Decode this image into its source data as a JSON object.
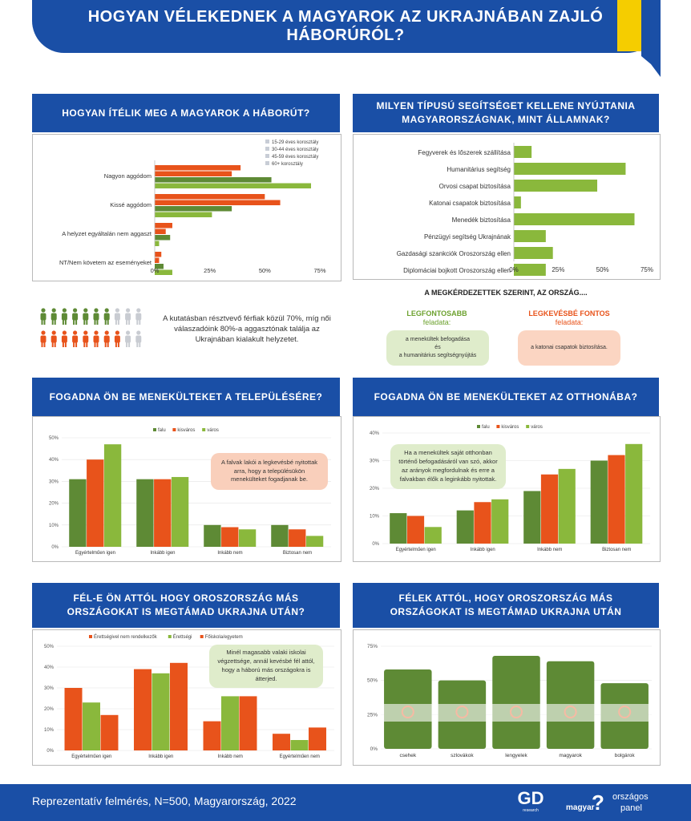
{
  "header": {
    "title": "HOGYAN VÉLEKEDNEK A MAGYAROK AZ UKRAJNÁBAN ZAJLÓ HÁBORÚRÓL?"
  },
  "colors": {
    "blue": "#1a4fa6",
    "dark_green": "#5e8a35",
    "light_green": "#8ab83c",
    "orange": "#e8531b",
    "grey_light": "#c8cdd6",
    "yellow": "#f5cd00"
  },
  "sections": {
    "war_title": "HOGYAN ÍTÉLIK MEG A MAGYAROK A HÁBORÚT?",
    "help_title": "MILYEN TÍPUSÚ SEGÍTSÉGET KELLENE NYÚJTANIA MAGYARORSZÁGNAK, MINT ÁLLAMNAK?",
    "settlement_title": "FOGADNA ÖN BE MENEKÜLTEKET A TELEPÜLÉSÉRE?",
    "home_title": "FOGADNA ÖN BE MENEKÜLTEKET AZ OTTHONÁBA?",
    "fear_edu_title": "FÉL-E ÖN ATTÓL HOGY OROSZORSZÁG MÁS ORSZÁGOKAT IS MEGTÁMAD UKRAJNA UTÁN?",
    "fear_country_title": "FÉLEK ATTÓL, HOGY OROSZORSZÁG MÁS ORSZÁGOKAT IS MEGTÁMAD UKRAJNA UTÁN"
  },
  "info": {
    "gender_text": "A kutatásban résztvevő férfiak közül 70%, míg női válaszadóink 80%-a aggasztónak találja az Ukrajnában kialakult helyzetet.",
    "country_heading": "A MEGKÉRDEZETTEK SZERINT, AZ ORSZÁG....",
    "most_heading": "LEGFONTOSABB",
    "most_sub": "feladata:",
    "most_text_1": "a menekültek befogadása",
    "most_text_2": "és",
    "most_text_3": "a humanitárius segítségnyújtás",
    "least_heading": "LEGKEVÉSBÉ FONTOS",
    "least_sub": "feladata:",
    "least_text": "a katonai csapatok biztosítása."
  },
  "notes": {
    "settlement": "A falvak lakói a legkevésbé nyitottak arra, hogy a településükön menekülteket fogadjanak be.",
    "home": "Ha a menekültek saját otthonban történő befogadásáról van szó, akkor az arányok megfordulnak és erre a falvakban élők a leginkább nyitottak.",
    "edu": "Minél magasabb valaki iskolai végzettsége, annál kevésbé fél attól, hogy a háború más országokra is átterjed."
  },
  "footer": {
    "text": "Reprezentatív felmérés, N=500, Magyarország, 2022",
    "logo_gd": "GD",
    "logo_gd_sub": "research",
    "logo_magyar": "magyar",
    "logo_orszagos": "országos",
    "logo_panel": "panel"
  },
  "chart_data": [
    {
      "id": "war",
      "type": "bar",
      "orientation": "horizontal",
      "categories": [
        "Nagyon aggódom",
        "Kissé aggódom",
        "A helyzet egyáltalán nem aggaszt",
        "NT/Nem követem az eseményeket"
      ],
      "series": [
        {
          "name": "15-29 éves korosztály",
          "values": [
            39,
            50,
            8,
            3
          ]
        },
        {
          "name": "30-44 éves korosztály",
          "values": [
            35,
            57,
            5,
            2
          ]
        },
        {
          "name": "45-59 éves korosztály",
          "values": [
            53,
            35,
            7,
            4
          ]
        },
        {
          "name": "60+ korosztály",
          "values": [
            71,
            26,
            2,
            8
          ]
        }
      ],
      "xticks": [
        "0%",
        "25%",
        "50%",
        "75%"
      ],
      "xlim": [
        0,
        75
      ]
    },
    {
      "id": "help",
      "type": "bar",
      "orientation": "horizontal",
      "categories": [
        "Fegyverek és lőszerek szállítása",
        "Humanitárius segítség",
        "Orvosi csapat biztosítása",
        "Katonai csapatok biztosítása",
        "Menedék biztosítása",
        "Pénzügyi segítség Ukrajnának",
        "Gazdasági szankciók Oroszország ellen",
        "Diplomáciai bojkott Oroszország ellen"
      ],
      "values": [
        10,
        63,
        47,
        4,
        68,
        18,
        22,
        18
      ],
      "xticks": [
        "0%",
        "25%",
        "50%",
        "75%"
      ],
      "xlim": [
        0,
        75
      ]
    },
    {
      "id": "settlement",
      "type": "bar",
      "categories": [
        "Egyértelműen igen",
        "Inkább igen",
        "Inkább nem",
        "Biztosan nem"
      ],
      "series": [
        {
          "name": "falu",
          "values": [
            31,
            31,
            10,
            10
          ]
        },
        {
          "name": "kisváros",
          "values": [
            40,
            31,
            9,
            8
          ]
        },
        {
          "name": "város",
          "values": [
            47,
            32,
            8,
            5
          ]
        }
      ],
      "yticks": [
        "0%",
        "10%",
        "20%",
        "30%",
        "40%",
        "50%"
      ],
      "ylim": [
        0,
        50
      ]
    },
    {
      "id": "home",
      "type": "bar",
      "categories": [
        "Egyértelműen igen",
        "Inkább igen",
        "Inkább nem",
        "Biztosan nem"
      ],
      "series": [
        {
          "name": "falu",
          "values": [
            11,
            12,
            19,
            30
          ]
        },
        {
          "name": "kisváros",
          "values": [
            10,
            15,
            25,
            32
          ]
        },
        {
          "name": "város",
          "values": [
            6,
            16,
            27,
            36
          ]
        }
      ],
      "yticks": [
        "0%",
        "10%",
        "20%",
        "30%",
        "40%"
      ],
      "ylim": [
        0,
        40
      ]
    },
    {
      "id": "fear_edu",
      "type": "bar",
      "categories": [
        "Egyértelműen igen",
        "Inkább igen",
        "Inkább nem",
        "Egyértelműen nem"
      ],
      "series": [
        {
          "name": "Érettségivel nem rendelkezők",
          "values": [
            30,
            39,
            14,
            8
          ]
        },
        {
          "name": "Érettségi",
          "values": [
            23,
            37,
            26,
            5
          ]
        },
        {
          "name": "Főiskola/egyetem",
          "values": [
            17,
            42,
            26,
            11
          ]
        }
      ],
      "yticks": [
        "0%",
        "10%",
        "20%",
        "30%",
        "40%",
        "50%"
      ],
      "ylim": [
        0,
        50
      ]
    },
    {
      "id": "fear_country",
      "type": "bar",
      "categories": [
        "csehek",
        "szlovákok",
        "lengyelek",
        "magyarok",
        "bolgárok"
      ],
      "values": [
        58,
        50,
        68,
        64,
        48
      ],
      "yticks": [
        "0%",
        "25%",
        "50%",
        "75%"
      ],
      "ylim": [
        0,
        75
      ]
    }
  ]
}
